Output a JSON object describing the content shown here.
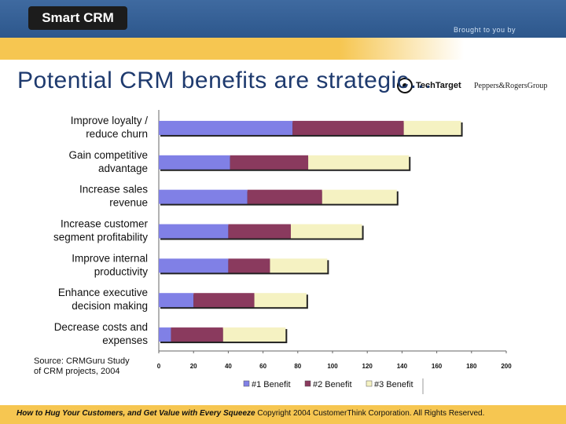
{
  "header": {
    "logo_text": "Smart CRM",
    "brought_text": "Brought to you by",
    "sponsor_1": "TechTarget",
    "sponsor_2": "Peppers&RogersGroup",
    "colors": {
      "header_blue": "#3f6aa0",
      "stripe_gold": "#f6c651"
    }
  },
  "slide_title": "Potential CRM benefits are strategic…",
  "source_line1": "Source: CRMGuru Study",
  "source_line2": "of CRM projects, 2004",
  "footer": {
    "italic": "How to Hug Your Customers, and Get Value with Every Squeeze",
    "rest": "Copyright 2004 CustomerThink Corporation. All Rights Reserved."
  },
  "chart_data": {
    "type": "bar",
    "orientation": "horizontal",
    "stacked": true,
    "categories": [
      [
        "Improve loyalty /",
        "reduce churn"
      ],
      [
        "Gain competitive",
        "advantage"
      ],
      [
        "Increase sales",
        "revenue"
      ],
      [
        "Increase customer",
        "segment profitability"
      ],
      [
        "Improve internal",
        "productivity"
      ],
      [
        "Enhance executive",
        "decision making"
      ],
      [
        "Decrease costs and",
        "expenses"
      ]
    ],
    "series": [
      {
        "name": "#1 Benefit",
        "color": "#8080e6",
        "values": [
          77,
          41,
          51,
          40,
          40,
          20,
          7
        ]
      },
      {
        "name": "#2 Benefit",
        "color": "#8a3a5e",
        "values": [
          64,
          45,
          43,
          36,
          24,
          35,
          30
        ]
      },
      {
        "name": "#3 Benefit",
        "color": "#f5f2c2",
        "values": [
          33,
          58,
          43,
          41,
          33,
          30,
          36
        ]
      }
    ],
    "x_ticks": [
      0,
      20,
      40,
      60,
      80,
      100,
      120,
      140,
      160,
      180,
      200
    ],
    "xlim": [
      0,
      200
    ],
    "grid": false,
    "legend_position": "bottom"
  }
}
